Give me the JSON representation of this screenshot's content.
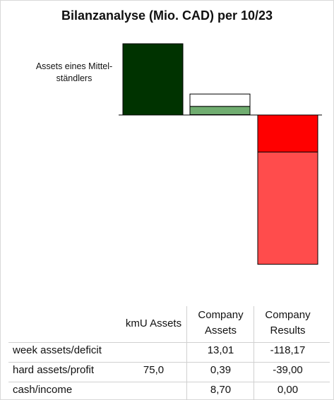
{
  "chart_data": {
    "type": "bar",
    "title": "Bilanzanalyse  (Mio. CAD) per 10/23",
    "annotation": "Assets eines Mittel-ständlers",
    "categories": [
      "kmU Assets",
      "Company Assets",
      "Company Results"
    ],
    "series": [
      {
        "name": "week assets/deficit",
        "values": [
          null,
          13.01,
          -118.17
        ],
        "colors": [
          null,
          "#ffffff",
          "#ff4c4c"
        ]
      },
      {
        "name": "hard assets/profit",
        "values": [
          75.0,
          0.39,
          -39.0
        ],
        "colors": [
          "#003300",
          "#70ad70",
          "#ff0000"
        ]
      },
      {
        "name": "cash/income",
        "values": [
          null,
          8.7,
          0.0
        ],
        "colors": [
          null,
          "#70ad70",
          "#ff0000"
        ]
      }
    ]
  },
  "table": {
    "headers": [
      "kmU Assets",
      "Company Assets",
      "Company Results"
    ],
    "header_lines": [
      [
        "kmU Assets"
      ],
      [
        "Company",
        "Assets"
      ],
      [
        "Company",
        "Results"
      ]
    ],
    "rows": [
      {
        "label": "week assets/deficit",
        "values": [
          "",
          "13,01",
          "-118,17"
        ]
      },
      {
        "label": "hard assets/profit",
        "values": [
          "75,0",
          "0,39",
          "-39,00"
        ]
      },
      {
        "label": "cash/income",
        "values": [
          "",
          "8,70",
          "0,00"
        ]
      }
    ]
  }
}
